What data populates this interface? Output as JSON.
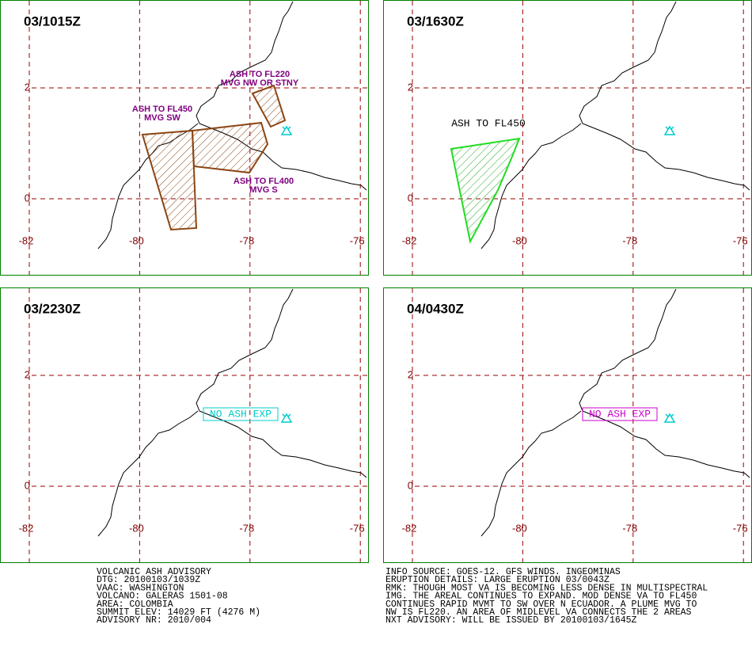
{
  "panels": [
    {
      "time": "03/1015Z",
      "labels": [
        {
          "lines": [
            "ASH TO FL220",
            "MVG NW OR STNY"
          ],
          "color": "#800080"
        },
        {
          "lines": [
            "ASH TO FL450",
            "MVG SW"
          ],
          "color": "#800080"
        },
        {
          "lines": [
            "ASH TO FL400",
            "MVG S"
          ],
          "color": "#800080"
        }
      ]
    },
    {
      "time": "03/1630Z",
      "labels": [
        {
          "lines": [
            "ASH TO FL450"
          ],
          "color": "#000000"
        }
      ]
    },
    {
      "time": "03/2230Z",
      "labels": [
        {
          "lines": [
            "NO ASH EXP"
          ],
          "color": "#00cccc",
          "boxed": true
        }
      ]
    },
    {
      "time": "04/0430Z",
      "labels": [
        {
          "lines": [
            "NO ASH EXP"
          ],
          "color": "#cc00cc",
          "boxed": true
        }
      ]
    }
  ],
  "grid": {
    "lon": [
      -82,
      -80,
      -78,
      -76
    ],
    "lat": [
      2,
      0
    ]
  },
  "advisory": {
    "left": [
      "VOLCANIC ASH ADVISORY",
      "DTG: 20100103/1039Z",
      "VAAC: WASHINGTON",
      "VOLCANO: GALERAS 1501-08",
      "AREA: COLOMBIA",
      "SUMMIT ELEV: 14029 FT (4276 M)",
      "ADVISORY NR: 2010/004"
    ],
    "right": [
      "INFO SOURCE: GOES-12. GFS WINDS. INGEOMINAS",
      "ERUPTION DETAILS: LARGE ERUPTION 03/0043Z",
      "RMK: THOUGH MOST VA IS BECOMING LESS DENSE IN MULTISPECTRAL",
      "IMG. THE AREAL CONTINUES TO EXPAND. MOD DENSE VA TO FL450",
      "CONTINUES RAPID MVMT TO SW OVER N ECUADOR. A PLUME MVG TO",
      "NW IS FL220. AN AREA OF MIDLEVEL VA CONNECTS THE 2 AREAS",
      "NXT ADVISORY: WILL BE ISSUED BY 20100103/1645Z"
    ]
  }
}
